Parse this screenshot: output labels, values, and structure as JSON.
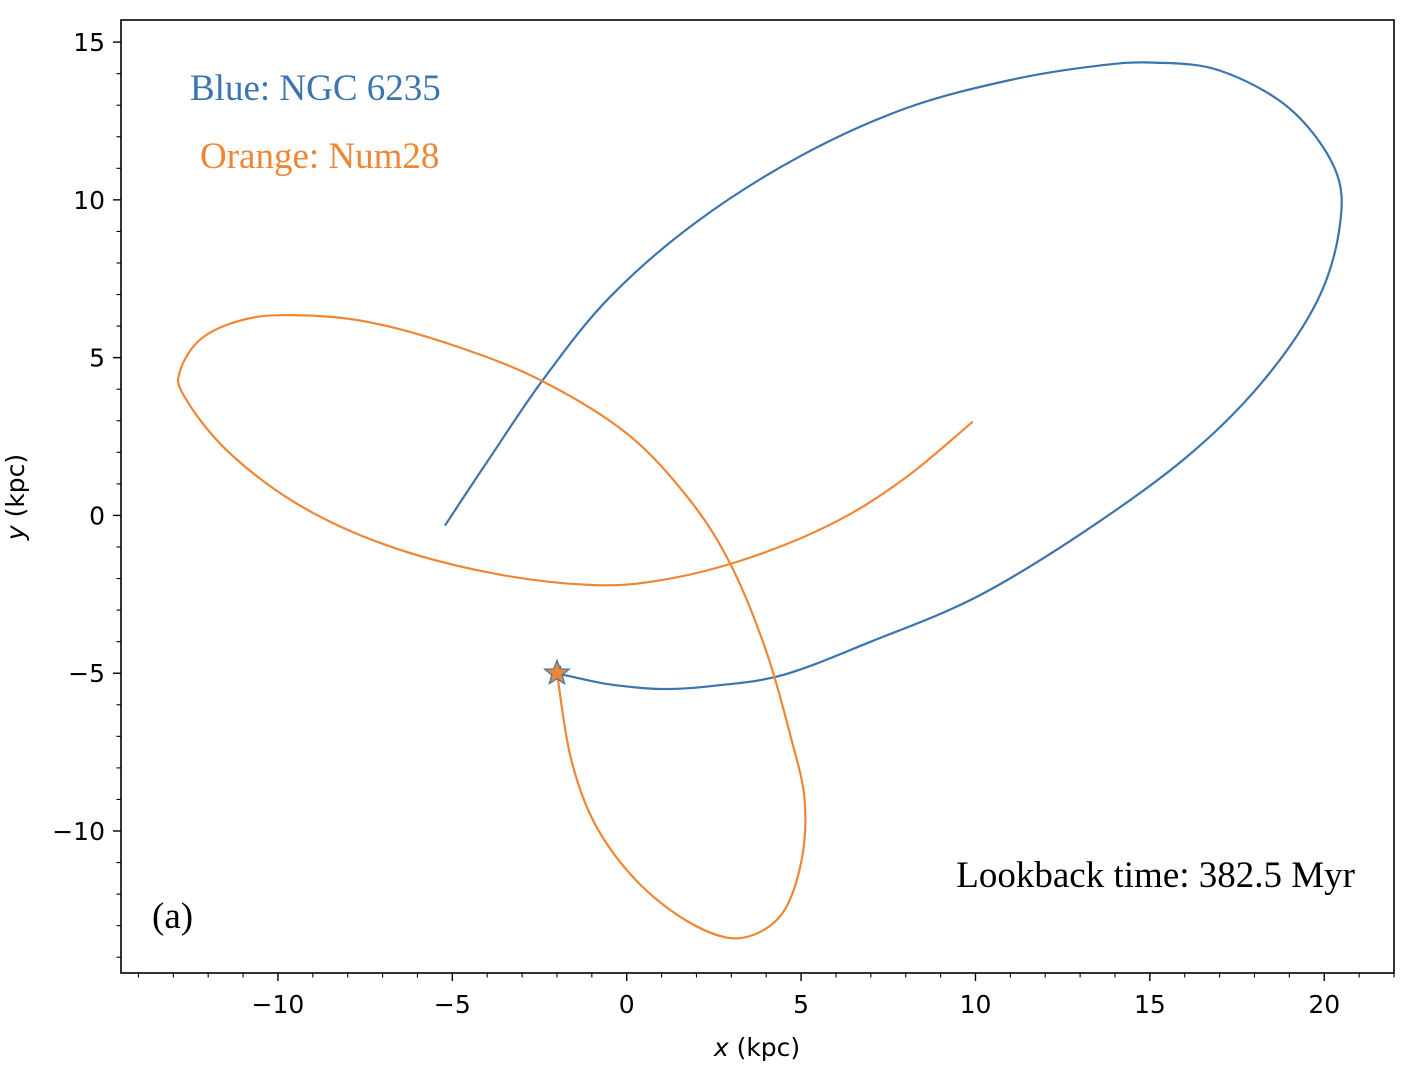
{
  "chart_data": {
    "type": "line",
    "xlabel_var": "x",
    "xlabel_unit": " (kpc)",
    "ylabel_var": "y",
    "ylabel_unit": " (kpc)",
    "xlim": [
      -14.5,
      22.0
    ],
    "ylim": [
      -14.5,
      15.7
    ],
    "xticks": [
      -10,
      -5,
      0,
      5,
      10,
      15,
      20
    ],
    "xtick_labels": [
      "−10",
      "−5",
      "0",
      "5",
      "10",
      "15",
      "20"
    ],
    "yticks": [
      -10,
      -5,
      0,
      5,
      10,
      15
    ],
    "ytick_labels": [
      "−10",
      "−5",
      "0",
      "5",
      "10",
      "15"
    ],
    "minor_tick_step": 1,
    "grid": false,
    "series": [
      {
        "color": "#3b75af",
        "points": [
          [
            -5.2,
            -0.3
          ],
          [
            -4.0,
            1.7
          ],
          [
            -2.4,
            4.3
          ],
          [
            -0.5,
            6.9
          ],
          [
            2.0,
            9.3
          ],
          [
            5.0,
            11.4
          ],
          [
            8.0,
            12.9
          ],
          [
            11.0,
            13.8
          ],
          [
            13.5,
            14.25
          ],
          [
            15.1,
            14.35
          ],
          [
            17.0,
            14.1
          ],
          [
            19.0,
            12.9
          ],
          [
            20.3,
            11.0
          ],
          [
            20.45,
            9.2
          ],
          [
            19.8,
            6.8
          ],
          [
            18.2,
            4.2
          ],
          [
            16.0,
            1.8
          ],
          [
            13.0,
            -0.6
          ],
          [
            10.0,
            -2.6
          ],
          [
            7.0,
            -4.0
          ],
          [
            4.5,
            -5.05
          ],
          [
            2.5,
            -5.4
          ],
          [
            1.0,
            -5.5
          ],
          [
            -0.5,
            -5.35
          ],
          [
            -1.6,
            -5.1
          ],
          [
            -2.0,
            -5.0
          ],
          [
            -1.9,
            -4.8
          ]
        ]
      },
      {
        "color": "#ef8636",
        "points": [
          [
            9.9,
            2.95
          ],
          [
            8.0,
            1.2
          ],
          [
            6.0,
            -0.2
          ],
          [
            3.5,
            -1.35
          ],
          [
            1.0,
            -2.05
          ],
          [
            -1.1,
            -2.2
          ],
          [
            -4.0,
            -1.8
          ],
          [
            -7.0,
            -0.9
          ],
          [
            -9.5,
            0.4
          ],
          [
            -11.5,
            2.1
          ],
          [
            -12.7,
            3.8
          ],
          [
            -12.8,
            4.6
          ],
          [
            -12.2,
            5.6
          ],
          [
            -11.0,
            6.2
          ],
          [
            -9.6,
            6.35
          ],
          [
            -7.5,
            6.15
          ],
          [
            -5.0,
            5.4
          ],
          [
            -2.5,
            4.3
          ],
          [
            0.0,
            2.6
          ],
          [
            1.8,
            0.5
          ],
          [
            3.0,
            -1.6
          ],
          [
            4.0,
            -4.3
          ],
          [
            4.7,
            -7.0
          ],
          [
            5.1,
            -9.0
          ],
          [
            5.0,
            -11.0
          ],
          [
            4.4,
            -12.7
          ],
          [
            3.2,
            -13.4
          ],
          [
            1.8,
            -12.9
          ],
          [
            0.3,
            -11.6
          ],
          [
            -0.9,
            -9.8
          ],
          [
            -1.6,
            -7.7
          ],
          [
            -2.0,
            -5.0
          ]
        ]
      }
    ],
    "marker": {
      "x": -2.0,
      "y": -5.0,
      "shape": "star",
      "fill": "#ef8636",
      "edge": "#3b75af"
    },
    "annotations": {
      "blue_label": "Blue: NGC 6235",
      "orange_label": "Orange: Num28",
      "lookback": "Lookback time: 382.5 Myr",
      "panel": "(a)"
    },
    "colors": {
      "blue": "#3b75af",
      "orange": "#ef8636",
      "text": "#000000"
    }
  }
}
